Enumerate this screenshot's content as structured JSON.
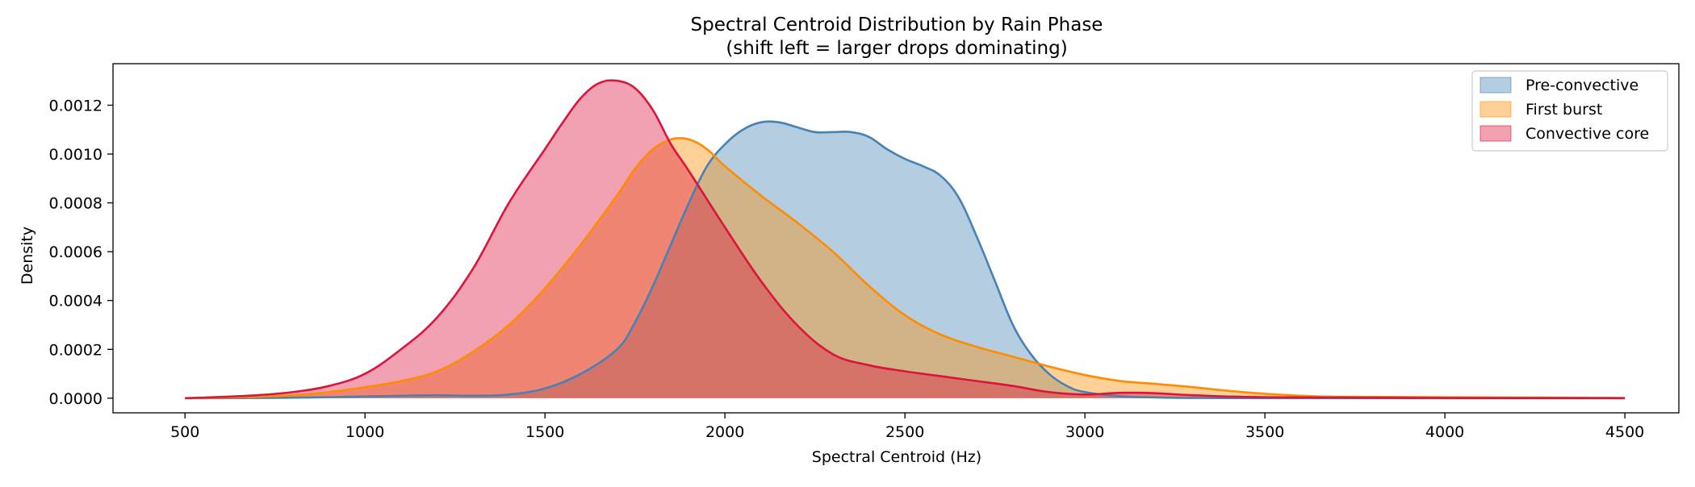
{
  "chart_data": {
    "type": "area",
    "title": "Spectral Centroid Distribution by Rain Phase",
    "subtitle": "(shift left = larger drops dominating)",
    "xlabel": "Spectral Centroid (Hz)",
    "ylabel": "Density",
    "xlim": [
      300,
      4650
    ],
    "ylim": [
      -6e-05,
      0.00137
    ],
    "xticks": [
      500,
      1000,
      1500,
      2000,
      2500,
      3000,
      3500,
      4000,
      4500
    ],
    "yticks": [
      0.0,
      0.0002,
      0.0004,
      0.0006,
      0.0008,
      0.001,
      0.0012
    ],
    "xtick_labels": [
      "500",
      "1000",
      "1500",
      "2000",
      "2500",
      "3000",
      "3500",
      "4000",
      "4500"
    ],
    "ytick_labels": [
      "0.0000",
      "0.0002",
      "0.0004",
      "0.0006",
      "0.0008",
      "0.0010",
      "0.0012"
    ],
    "grid": false,
    "legend_position": "top-right",
    "series": [
      {
        "name": "Pre-convective",
        "line_color": "#4682b4",
        "fill_color": "#4682b4",
        "fill_opacity": 0.4,
        "x": [
          500,
          600,
          700,
          800,
          900,
          1000,
          1100,
          1200,
          1300,
          1400,
          1500,
          1600,
          1700,
          1750,
          1800,
          1850,
          1900,
          1950,
          2000,
          2050,
          2100,
          2150,
          2200,
          2250,
          2300,
          2350,
          2400,
          2450,
          2500,
          2550,
          2600,
          2650,
          2700,
          2750,
          2800,
          2850,
          2900,
          2950,
          3000,
          3100,
          3200,
          3300,
          3500,
          4000,
          4500
        ],
        "y": [
          0.0,
          0.0,
          1e-06,
          2e-06,
          4e-06,
          7e-06,
          1e-05,
          1.2e-05,
          1e-05,
          1.5e-05,
          4e-05,
          0.0001,
          0.0002,
          0.00031,
          0.00046,
          0.00063,
          0.0008,
          0.00095,
          0.00104,
          0.0011,
          0.00113,
          0.00113,
          0.00111,
          0.00109,
          0.00109,
          0.00109,
          0.00107,
          0.00102,
          0.00098,
          0.00095,
          0.00091,
          0.00082,
          0.00066,
          0.00048,
          0.0003,
          0.00018,
          0.0001,
          5e-05,
          2.5e-05,
          8e-06,
          3e-06,
          1e-06,
          0.0,
          0.0,
          0.0
        ]
      },
      {
        "name": "First burst",
        "line_color": "#ff8c00",
        "fill_color": "#ff8c00",
        "fill_opacity": 0.4,
        "x": [
          500,
          600,
          700,
          800,
          900,
          1000,
          1100,
          1200,
          1300,
          1400,
          1500,
          1600,
          1700,
          1750,
          1800,
          1850,
          1900,
          1950,
          2000,
          2100,
          2200,
          2300,
          2400,
          2500,
          2600,
          2700,
          2800,
          2900,
          3000,
          3100,
          3200,
          3300,
          3400,
          3500,
          3600,
          3700,
          4000,
          4500
        ],
        "y": [
          0.0,
          2e-06,
          6e-06,
          1.2e-05,
          2.5e-05,
          4.5e-05,
          7e-05,
          0.00011,
          0.00019,
          0.0003,
          0.00045,
          0.00063,
          0.00083,
          0.00094,
          0.00102,
          0.00106,
          0.00106,
          0.00102,
          0.00095,
          0.00083,
          0.00072,
          0.0006,
          0.00046,
          0.00034,
          0.00026,
          0.00021,
          0.00017,
          0.00013,
          9.5e-05,
          7e-05,
          5.8e-05,
          4.5e-05,
          3e-05,
          1.8e-05,
          1e-05,
          6e-06,
          4e-06,
          1e-06
        ]
      },
      {
        "name": "Convective core",
        "line_color": "#dc143c",
        "fill_color": "#dc143c",
        "fill_opacity": 0.4,
        "x": [
          500,
          600,
          700,
          800,
          900,
          1000,
          1100,
          1200,
          1300,
          1400,
          1500,
          1550,
          1600,
          1650,
          1700,
          1750,
          1800,
          1850,
          1900,
          2000,
          2100,
          2200,
          2300,
          2400,
          2500,
          2600,
          2700,
          2800,
          2900,
          3000,
          3100,
          3200,
          3300,
          3500,
          4000,
          4500
        ],
        "y": [
          0.0,
          5e-06,
          1.2e-05,
          2.5e-05,
          5e-05,
          0.0001,
          0.0002,
          0.00033,
          0.00053,
          0.0008,
          0.00102,
          0.00113,
          0.00123,
          0.00129,
          0.0013,
          0.00127,
          0.00118,
          0.00104,
          0.00093,
          0.0007,
          0.00048,
          0.0003,
          0.00018,
          0.000135,
          0.00011,
          9e-05,
          7e-05,
          5e-05,
          2.5e-05,
          1.5e-05,
          2.2e-05,
          2e-05,
          1.2e-05,
          4e-06,
          1e-06,
          0.0
        ]
      }
    ]
  }
}
